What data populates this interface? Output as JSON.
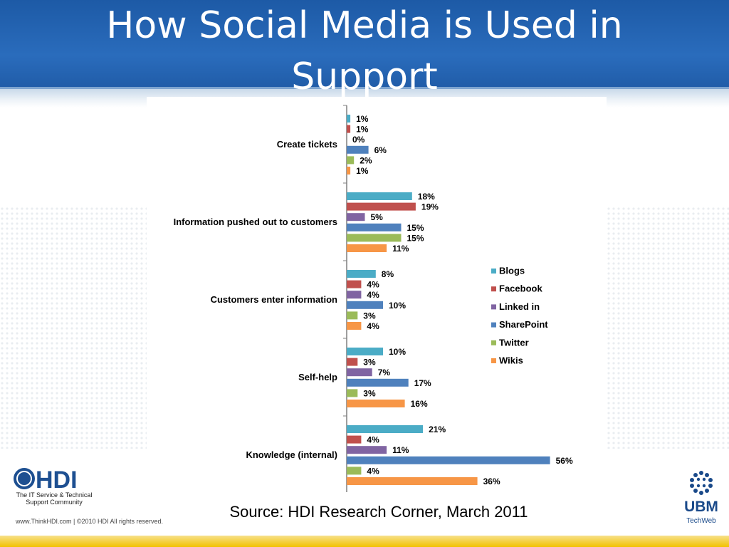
{
  "slide": {
    "title": "How Social Media is Used in Support",
    "title_lines": [
      "How Social Media is Used in",
      "Support"
    ],
    "source": "Source: HDI Research Corner, March 2011"
  },
  "branding": {
    "hdi_logo_text": "HDI",
    "hdi_tagline_1": "The IT Service & Technical",
    "hdi_tagline_2": "Support Community",
    "footer": "www.ThinkHDI.com  |  ©2010 HDI  All rights reserved.",
    "ubm_name": "UBM",
    "ubm_sub": "TechWeb"
  },
  "colors": {
    "header": "#2a6cbc",
    "stripe": "#f2c200"
  },
  "chart_data": {
    "type": "bar",
    "orientation": "horizontal",
    "categories": [
      "Create tickets",
      "Information pushed out to customers",
      "Customers enter information",
      "Self-help",
      "Knowledge (internal)"
    ],
    "series": [
      {
        "name": "Blogs",
        "color": "#4bacc6",
        "values": [
          1,
          18,
          8,
          10,
          21
        ]
      },
      {
        "name": "Facebook",
        "color": "#c0504d",
        "values": [
          1,
          19,
          4,
          3,
          4
        ]
      },
      {
        "name": "Linked in",
        "color": "#8064a2",
        "values": [
          0,
          5,
          4,
          7,
          11
        ]
      },
      {
        "name": "SharePoint",
        "color": "#4f81bd",
        "values": [
          6,
          15,
          10,
          17,
          56
        ]
      },
      {
        "name": "Twitter",
        "color": "#9bbb59",
        "values": [
          2,
          15,
          3,
          3,
          4
        ]
      },
      {
        "name": "Wikis",
        "color": "#f79646",
        "values": [
          1,
          11,
          4,
          16,
          36
        ]
      }
    ],
    "value_suffix": "%",
    "legend_position": "right",
    "xlim": [
      0,
      60
    ],
    "grid": false
  }
}
